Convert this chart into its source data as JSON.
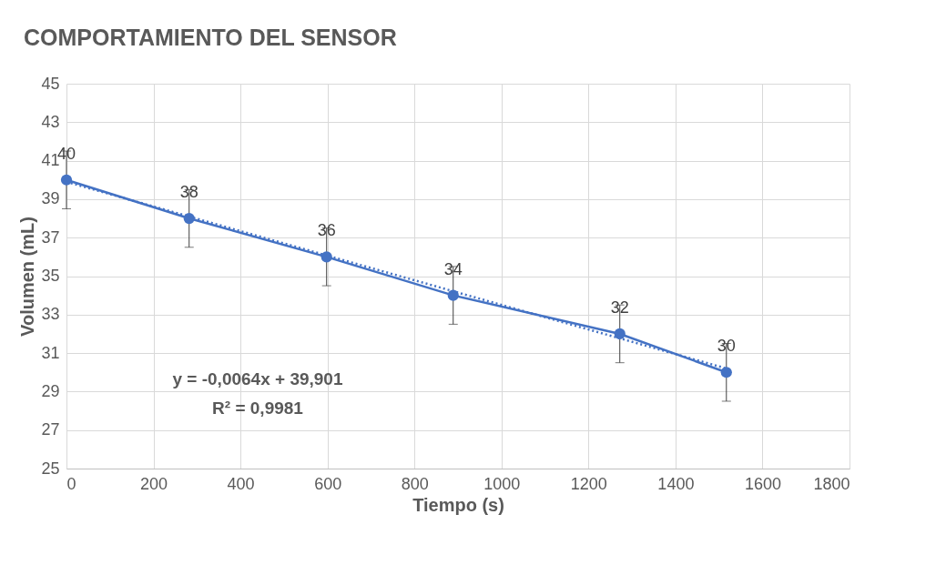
{
  "chart_data": {
    "type": "line",
    "title": "COMPORTAMIENTO DEL SENSOR",
    "xlabel": "Tiempo (s)",
    "ylabel": "Volumen (mL)",
    "series": [
      {
        "color": "#4472c4",
        "x": [
          0,
          282,
          598,
          889,
          1272,
          1517
        ],
        "values": [
          40,
          38,
          36,
          34,
          32,
          30
        ],
        "errors": [
          1.5,
          1.5,
          1.5,
          1.5,
          1.5,
          1.5
        ],
        "value_labels": [
          "40",
          "38",
          "36",
          "34",
          "32",
          "30"
        ],
        "marker": "circle",
        "line_style": "solid"
      },
      {
        "type": "line",
        "color": "#4472c4",
        "x": [
          0,
          1517
        ],
        "values": [
          39.9,
          30.2
        ],
        "marker": "none",
        "line_style": "dotted"
      }
    ],
    "annotations": [
      "y = -0,0064x + 39,901",
      "R² = 0,9981"
    ],
    "xlim": [
      0,
      1800
    ],
    "xticks": [
      0,
      200,
      400,
      600,
      800,
      1000,
      1200,
      1400,
      1600,
      1800
    ],
    "ylim": [
      25,
      45
    ],
    "yticks": [
      25,
      27,
      29,
      31,
      33,
      35,
      37,
      39,
      41,
      43,
      45
    ],
    "grid": true
  }
}
